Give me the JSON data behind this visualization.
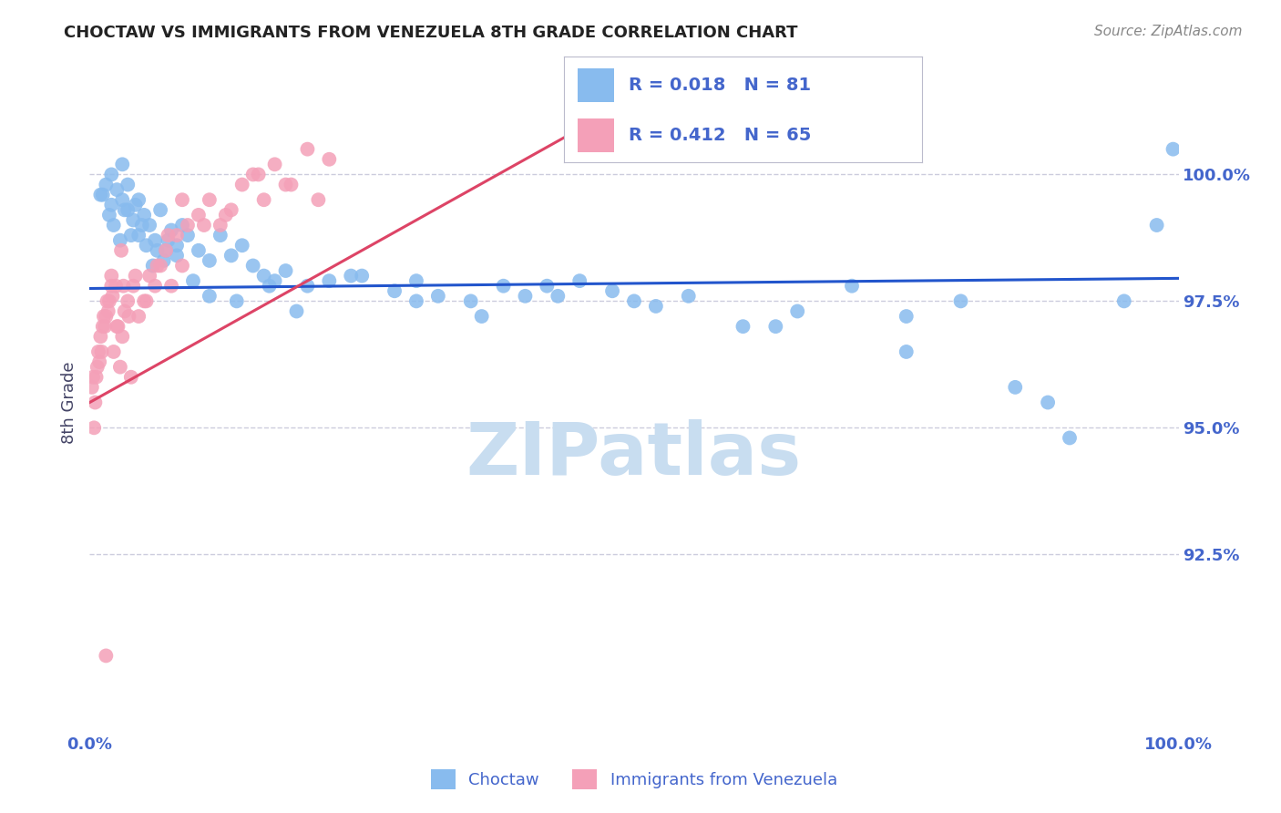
{
  "title": "CHOCTAW VS IMMIGRANTS FROM VENEZUELA 8TH GRADE CORRELATION CHART",
  "source_text": "Source: ZipAtlas.com",
  "ylabel": "8th Grade",
  "y_tick_values": [
    92.5,
    95.0,
    97.5,
    100.0
  ],
  "xlim": [
    0.0,
    100.0
  ],
  "ylim": [
    89.0,
    102.0
  ],
  "blue_label": "Choctaw",
  "pink_label": "Immigrants from Venezuela",
  "blue_R": "0.018",
  "blue_N": "81",
  "pink_R": "0.412",
  "pink_N": "65",
  "title_color": "#222222",
  "tick_color": "#4466cc",
  "blue_color": "#88bbee",
  "pink_color": "#f4a0b8",
  "blue_line_color": "#2255cc",
  "pink_line_color": "#dd4466",
  "grid_color": "#ccccdd",
  "watermark_color": "#c8ddf0",
  "background_color": "#ffffff",
  "blue_scatter_x": [
    1.0,
    1.5,
    2.0,
    2.0,
    2.5,
    3.0,
    3.0,
    3.5,
    3.5,
    4.0,
    4.5,
    4.5,
    5.0,
    5.5,
    6.0,
    6.5,
    7.0,
    7.5,
    8.0,
    8.5,
    9.0,
    10.0,
    11.0,
    12.0,
    13.0,
    14.0,
    15.0,
    16.0,
    17.0,
    18.0,
    20.0,
    22.0,
    25.0,
    28.0,
    30.0,
    32.0,
    35.0,
    38.0,
    40.0,
    42.0,
    45.0,
    48.0,
    50.0,
    55.0,
    60.0,
    65.0,
    70.0,
    75.0,
    80.0,
    85.0,
    90.0,
    95.0,
    1.2,
    1.8,
    2.2,
    2.8,
    3.2,
    3.8,
    4.2,
    4.8,
    5.2,
    5.8,
    6.2,
    6.8,
    7.2,
    8.0,
    9.5,
    11.0,
    13.5,
    16.5,
    19.0,
    24.0,
    30.0,
    36.0,
    43.0,
    52.0,
    63.0,
    75.0,
    88.0,
    98.0,
    99.5
  ],
  "blue_scatter_y": [
    99.6,
    99.8,
    99.4,
    100.0,
    99.7,
    99.5,
    100.2,
    99.3,
    99.8,
    99.1,
    99.5,
    98.8,
    99.2,
    99.0,
    98.7,
    99.3,
    98.5,
    98.9,
    98.6,
    99.0,
    98.8,
    98.5,
    98.3,
    98.8,
    98.4,
    98.6,
    98.2,
    98.0,
    97.9,
    98.1,
    97.8,
    97.9,
    98.0,
    97.7,
    97.9,
    97.6,
    97.5,
    97.8,
    97.6,
    97.8,
    97.9,
    97.7,
    97.5,
    97.6,
    97.0,
    97.3,
    97.8,
    97.2,
    97.5,
    95.8,
    94.8,
    97.5,
    99.6,
    99.2,
    99.0,
    98.7,
    99.3,
    98.8,
    99.4,
    99.0,
    98.6,
    98.2,
    98.5,
    98.3,
    98.7,
    98.4,
    97.9,
    97.6,
    97.5,
    97.8,
    97.3,
    98.0,
    97.5,
    97.2,
    97.6,
    97.4,
    97.0,
    96.5,
    95.5,
    99.0,
    100.5
  ],
  "pink_scatter_x": [
    0.3,
    0.5,
    0.8,
    1.0,
    1.2,
    1.5,
    1.8,
    2.0,
    2.2,
    2.5,
    2.8,
    3.0,
    3.2,
    3.5,
    3.8,
    4.0,
    4.5,
    5.0,
    5.5,
    6.0,
    6.5,
    7.0,
    7.5,
    8.0,
    8.5,
    9.0,
    10.0,
    11.0,
    12.0,
    13.0,
    14.0,
    15.0,
    16.0,
    17.0,
    18.0,
    20.0,
    22.0,
    0.4,
    0.7,
    1.1,
    1.4,
    1.7,
    2.1,
    2.6,
    3.1,
    3.6,
    4.2,
    5.2,
    6.2,
    7.2,
    8.5,
    10.5,
    12.5,
    15.5,
    18.5,
    21.0,
    0.2,
    0.6,
    0.9,
    1.3,
    1.6,
    2.0,
    2.4,
    2.9,
    1.5
  ],
  "pink_scatter_y": [
    96.0,
    95.5,
    96.5,
    96.8,
    97.0,
    97.2,
    97.5,
    97.8,
    96.5,
    97.0,
    96.2,
    96.8,
    97.3,
    97.5,
    96.0,
    97.8,
    97.2,
    97.5,
    98.0,
    97.8,
    98.2,
    98.5,
    97.8,
    98.8,
    98.2,
    99.0,
    99.2,
    99.5,
    99.0,
    99.3,
    99.8,
    100.0,
    99.5,
    100.2,
    99.8,
    100.5,
    100.3,
    95.0,
    96.2,
    96.5,
    97.0,
    97.3,
    97.6,
    97.0,
    97.8,
    97.2,
    98.0,
    97.5,
    98.2,
    98.8,
    99.5,
    99.0,
    99.2,
    100.0,
    99.8,
    99.5,
    95.8,
    96.0,
    96.3,
    97.2,
    97.5,
    98.0,
    97.8,
    98.5,
    90.5
  ],
  "blue_line_x": [
    0.0,
    100.0
  ],
  "blue_line_y": [
    97.75,
    97.95
  ],
  "pink_line_x": [
    0.0,
    50.0
  ],
  "pink_line_y": [
    95.5,
    101.5
  ]
}
